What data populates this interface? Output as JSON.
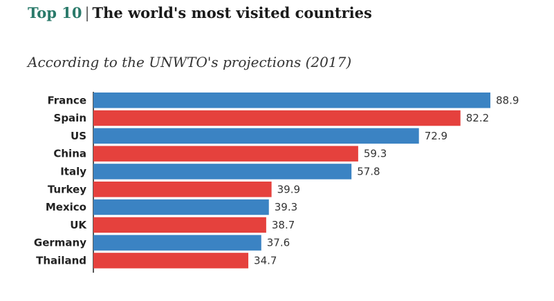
{
  "header": {
    "title_prefix": "Top 10",
    "title_sep": "|",
    "title_main": "The world's most visited countries",
    "subtitle": "According to the UNWTO's projections (2017)"
  },
  "colors": {
    "blue": "#3b83c3",
    "red": "#e5413d",
    "accent": "#2a7a6a"
  },
  "chart_data": {
    "type": "bar",
    "orientation": "horizontal",
    "title": "Top 10 | The world's most visited countries",
    "subtitle": "According to the UNWTO's projections (2017)",
    "categories": [
      "France",
      "Spain",
      "US",
      "China",
      "Italy",
      "Turkey",
      "Mexico",
      "UK",
      "Germany",
      "Thailand"
    ],
    "values": [
      88.9,
      82.2,
      72.9,
      59.3,
      57.8,
      39.9,
      39.3,
      38.7,
      37.6,
      34.7
    ],
    "value_labels": [
      "88.9",
      "82.2",
      "72.9",
      "59.3",
      "57.8",
      "39.9",
      "39.3",
      "38.7",
      "37.6",
      "34.7"
    ],
    "bar_colors": [
      "blue",
      "red",
      "blue",
      "red",
      "blue",
      "red",
      "blue",
      "red",
      "blue",
      "red"
    ],
    "xlim": [
      0,
      100
    ],
    "grid": false,
    "legend": "none"
  }
}
